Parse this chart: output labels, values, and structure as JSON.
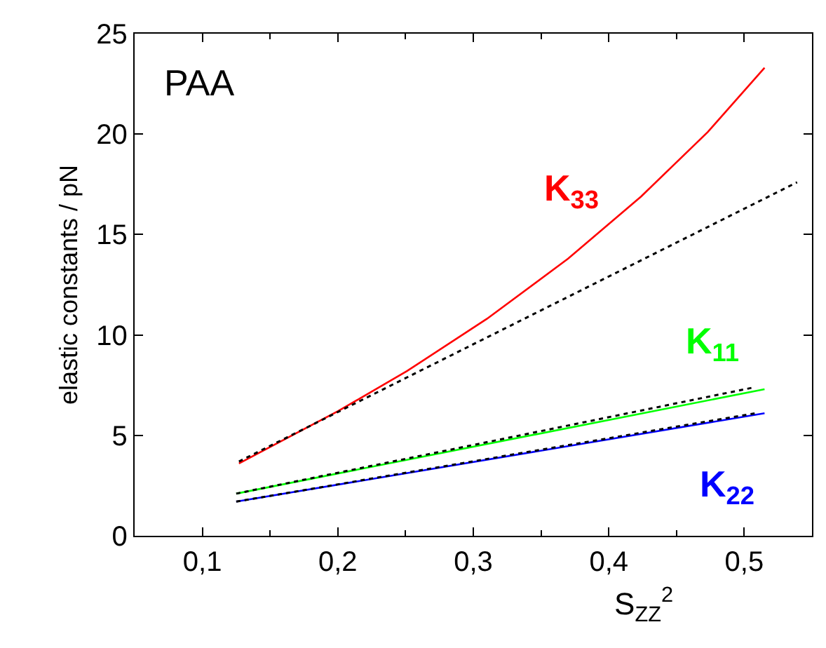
{
  "chart_data": {
    "type": "line",
    "xlabel": "S$_{ZZ}$$^{2}$",
    "ylabel": "elastic constants / pN",
    "annotations": [
      "PAA"
    ],
    "series": [
      {
        "name": "K$_{33}$",
        "color": "#ff0000",
        "x": [
          0.127,
          0.2,
          0.251,
          0.31,
          0.37,
          0.424,
          0.473,
          0.515
        ],
        "values": [
          3.6,
          6.2,
          8.2,
          10.8,
          13.8,
          16.9,
          20.1,
          23.3
        ],
        "line_style": "solid"
      },
      {
        "name": "K$_{11}$",
        "color": "#00ff00",
        "x": [
          0.125,
          0.515
        ],
        "values": [
          2.1,
          7.3
        ],
        "line_style": "solid"
      },
      {
        "name": "K$_{22}$",
        "color": "#0000ff",
        "x": [
          0.125,
          0.515
        ],
        "values": [
          1.7,
          6.1
        ],
        "line_style": "solid"
      },
      {
        "color": "#000000",
        "x": [
          0.127,
          0.539
        ],
        "values": [
          3.7,
          17.6
        ],
        "line_style": "dotted"
      },
      {
        "color": "#000000",
        "x": [
          0.125,
          0.508
        ],
        "values": [
          2.1,
          7.4
        ],
        "line_style": "dotted"
      },
      {
        "color": "#000000",
        "x": [
          0.125,
          0.508
        ],
        "values": [
          1.7,
          6.1
        ],
        "line_style": "dotted"
      }
    ],
    "xlim": [
      0.05,
      0.55
    ],
    "xticks": [
      {
        "value": 0.1,
        "label": "0,1"
      },
      {
        "value": 0.2,
        "label": "0,2"
      },
      {
        "value": 0.3,
        "label": "0,3"
      },
      {
        "value": 0.4,
        "label": "0,4"
      },
      {
        "value": 0.5,
        "label": "0,5"
      }
    ],
    "ylim": [
      0,
      25
    ],
    "yticks": [
      0,
      5,
      10,
      15,
      20,
      25
    ],
    "legend": false,
    "marker": "none"
  }
}
